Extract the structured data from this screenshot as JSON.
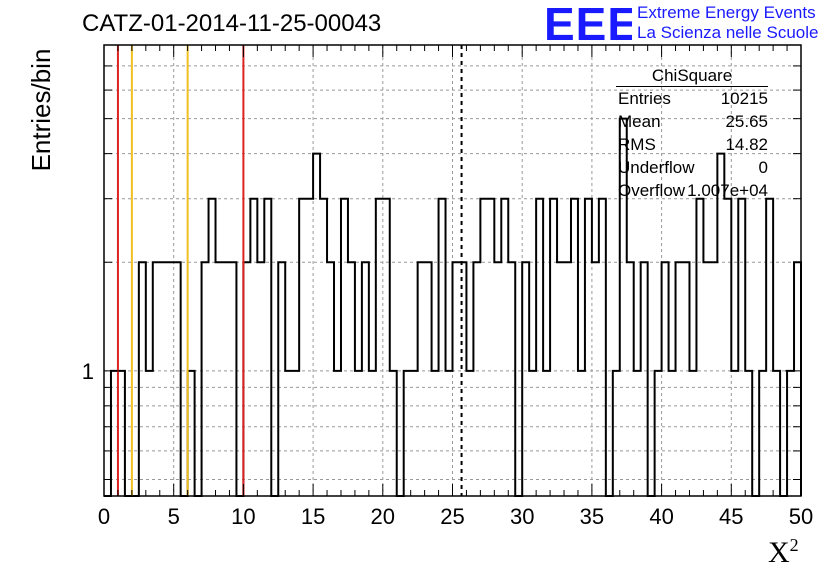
{
  "title": "CATZ-01-2014-11-25-00043",
  "logo": {
    "mark": "EEE",
    "line1": "Extreme Energy Events",
    "line2": "La Scienza nelle Scuole",
    "color": "#1a1aff"
  },
  "stats": {
    "title": "ChiSquare",
    "rows": [
      {
        "key": "Entries",
        "value": "10215"
      },
      {
        "key": "Mean",
        "value": "25.65"
      },
      {
        "key": "RMS",
        "value": "14.82"
      },
      {
        "key": "Underflow",
        "value": "0"
      },
      {
        "key": "Overflow",
        "value": "1.007e+04"
      }
    ]
  },
  "chart_data": {
    "type": "histogram",
    "title": "CATZ-01-2014-11-25-00043",
    "xlabel": "X",
    "xlabel_sup": "2",
    "ylabel": "Entries/bin",
    "xlim": [
      0,
      50
    ],
    "ylog": true,
    "ylim": [
      0.45,
      8
    ],
    "ytick_label": "1",
    "xticks": [
      "0",
      "5",
      "10",
      "15",
      "20",
      "25",
      "30",
      "35",
      "40",
      "45",
      "50"
    ],
    "bin_width": 0.5,
    "grid": true,
    "values": [
      0,
      1,
      1,
      0,
      0,
      2,
      1,
      2,
      2,
      2,
      2,
      0,
      1,
      0,
      2,
      3,
      2,
      2,
      2,
      0,
      2,
      3,
      2,
      3,
      0,
      2,
      1,
      1,
      3,
      3,
      4,
      3,
      2,
      1,
      3,
      2,
      1,
      2,
      1,
      3,
      3,
      1,
      0,
      1,
      1,
      2,
      2,
      1,
      3,
      1,
      2,
      2,
      1,
      2,
      3,
      3,
      2,
      3,
      2,
      0,
      2,
      1,
      3,
      1,
      3,
      2,
      2,
      3,
      1,
      3,
      2,
      3,
      0,
      1,
      5,
      2,
      1,
      2,
      0,
      1,
      2,
      1,
      2,
      2,
      1,
      3,
      2,
      2,
      4,
      3,
      1,
      3,
      1,
      0,
      1,
      3,
      1,
      0,
      1,
      2
    ],
    "markers": [
      {
        "x": 1,
        "color": "#dd2222",
        "style": "solid"
      },
      {
        "x": 10,
        "color": "#dd2222",
        "style": "solid"
      },
      {
        "x": 2,
        "color": "#f0c020",
        "style": "solid"
      },
      {
        "x": 6,
        "color": "#f0c020",
        "style": "solid"
      },
      {
        "x": 25.65,
        "color": "#000000",
        "style": "dashed"
      }
    ]
  }
}
